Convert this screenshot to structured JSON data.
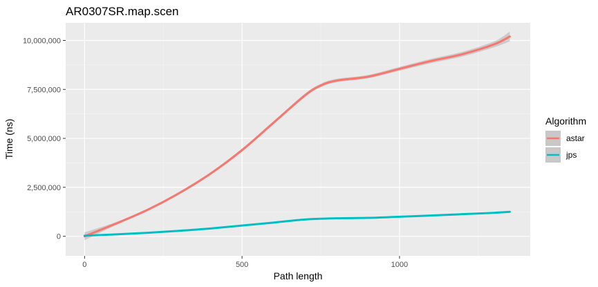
{
  "chart_data": {
    "type": "line",
    "title": "AR0307SR.map.scen",
    "xlabel": "Path length",
    "ylabel": "Time (ns)",
    "xlim": [
      -60,
      1415
    ],
    "ylim": [
      -1000000,
      10900000
    ],
    "x_ticks": [
      0,
      500,
      1000
    ],
    "x_tick_labels": [
      "0",
      "500",
      "1000"
    ],
    "y_ticks": [
      0,
      2500000,
      5000000,
      7500000,
      10000000
    ],
    "y_tick_labels": [
      "0",
      "2,500,000",
      "5,000,000",
      "7,500,000",
      "10,000,000"
    ],
    "grid": true,
    "legend": {
      "title": "Algorithm",
      "position": "right"
    },
    "series": [
      {
        "name": "astar",
        "color": "#F8766D",
        "confidence_band": true,
        "x": [
          0,
          100,
          200,
          300,
          400,
          500,
          600,
          700,
          750,
          800,
          900,
          1000,
          1100,
          1200,
          1300,
          1350
        ],
        "y": [
          0,
          650000,
          1350000,
          2200000,
          3200000,
          4400000,
          5800000,
          7200000,
          7700000,
          7950000,
          8150000,
          8550000,
          8950000,
          9300000,
          9800000,
          10200000
        ],
        "band_halfwidth": [
          200000,
          80000,
          70000,
          70000,
          70000,
          80000,
          80000,
          90000,
          90000,
          90000,
          90000,
          100000,
          110000,
          120000,
          150000,
          250000
        ]
      },
      {
        "name": "jps",
        "color": "#00BFC4",
        "confidence_band": true,
        "x": [
          0,
          100,
          200,
          300,
          400,
          500,
          600,
          700,
          800,
          900,
          1000,
          1100,
          1200,
          1300,
          1350
        ],
        "y": [
          30000,
          100000,
          180000,
          280000,
          400000,
          550000,
          700000,
          860000,
          920000,
          940000,
          1000000,
          1060000,
          1130000,
          1200000,
          1250000
        ],
        "band_halfwidth": [
          30000,
          15000,
          10000,
          10000,
          10000,
          10000,
          10000,
          10000,
          10000,
          10000,
          10000,
          10000,
          10000,
          15000,
          25000
        ]
      }
    ]
  }
}
